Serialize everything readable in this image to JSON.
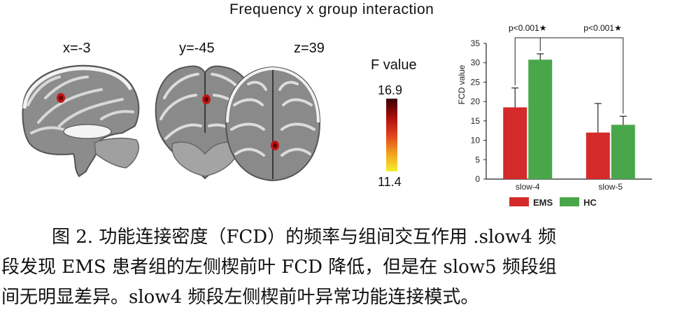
{
  "figure": {
    "title": "Frequency x group interaction",
    "brain_views": [
      {
        "label": "x=-3"
      },
      {
        "label": "y=-45"
      },
      {
        "label": "z=39"
      }
    ],
    "colorbar": {
      "title": "F value",
      "max": "16.9",
      "min": "11.4",
      "colors": [
        "#3a0000",
        "#a80d0d",
        "#e0401a",
        "#f0a020",
        "#f6ef2a"
      ]
    }
  },
  "chart_data": {
    "type": "bar",
    "categories": [
      "slow-4",
      "slow-5"
    ],
    "series": [
      {
        "name": "EMS",
        "color": "#d42a2a",
        "values": [
          18.5,
          12.0
        ],
        "errors": [
          5.0,
          7.5
        ]
      },
      {
        "name": "HC",
        "color": "#4aa64a",
        "values": [
          30.8,
          14.0
        ],
        "errors": [
          1.5,
          2.2
        ]
      }
    ],
    "ylabel": "FCD value",
    "xlabel": "",
    "ylim": [
      0,
      35
    ],
    "yticks": [
      0,
      5,
      10,
      15,
      20,
      25,
      30,
      35
    ],
    "annotations": [
      "p<0.001★",
      "p<0.001★"
    ],
    "legend_placement": "bottom",
    "grid": false
  },
  "caption": {
    "line1": "图 2. 功能连接密度（FCD）的频率与组间交互作用 .slow4 频",
    "line2": "段发现 EMS 患者组的左侧楔前叶 FCD 降低，但是在 slow5 频段组",
    "line3": "间无明显差异。slow4 频段左侧楔前叶异常功能连接模式。"
  }
}
